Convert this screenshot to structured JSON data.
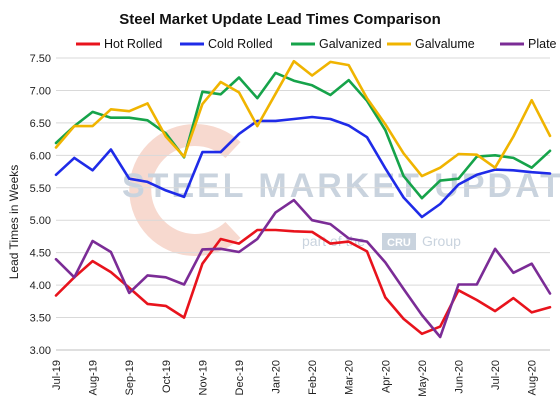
{
  "chart_data": {
    "type": "line",
    "title": "Steel Market Update Lead Times Comparison",
    "ylabel": "Lead Times in Weeks",
    "xlabel": "",
    "ylim": [
      3.0,
      7.5
    ],
    "yticks": [
      "3.00",
      "3.50",
      "4.00",
      "4.50",
      "5.00",
      "5.50",
      "6.00",
      "6.50",
      "7.00",
      "7.50"
    ],
    "x_tick_labels": [
      "Jul-19",
      "Aug-19",
      "Sep-19",
      "Oct-19",
      "Nov-19",
      "Dec-19",
      "Jan-20",
      "Feb-20",
      "Mar-20",
      "Apr-20",
      "May-20",
      "Jun-20",
      "Jul-20",
      "Aug-20"
    ],
    "grid": "horizontal",
    "legend": "top",
    "series": [
      {
        "name": "Hot Rolled",
        "color": "#e8131c",
        "values": [
          3.84,
          4.12,
          4.37,
          4.2,
          3.96,
          3.71,
          3.68,
          3.5,
          4.33,
          4.71,
          4.64,
          4.85,
          4.85,
          4.83,
          4.82,
          4.64,
          4.67,
          4.52,
          3.81,
          3.48,
          3.25,
          3.36,
          3.92,
          3.77,
          3.6,
          3.8,
          3.58,
          3.66
        ]
      },
      {
        "name": "Cold Rolled",
        "color": "#1f2be8",
        "values": [
          5.7,
          5.96,
          5.77,
          6.09,
          5.64,
          5.59,
          5.46,
          5.36,
          6.05,
          6.05,
          6.33,
          6.53,
          6.53,
          6.56,
          6.59,
          6.56,
          6.46,
          6.28,
          5.8,
          5.35,
          5.05,
          5.25,
          5.55,
          5.7,
          5.78,
          5.77,
          5.74,
          5.72
        ]
      },
      {
        "name": "Galvanized",
        "color": "#16a34a",
        "values": [
          6.19,
          6.45,
          6.67,
          6.58,
          6.58,
          6.54,
          6.34,
          5.97,
          6.98,
          6.94,
          7.2,
          6.88,
          7.27,
          7.15,
          7.08,
          6.93,
          7.16,
          6.84,
          6.39,
          5.68,
          5.34,
          5.61,
          5.64,
          5.98,
          6.0,
          5.96,
          5.81,
          6.07
        ]
      },
      {
        "name": "Galvalume",
        "color": "#f0b400",
        "values": [
          6.12,
          6.45,
          6.45,
          6.71,
          6.68,
          6.8,
          6.29,
          5.98,
          6.79,
          7.13,
          6.97,
          6.45,
          6.95,
          7.45,
          7.23,
          7.44,
          7.39,
          6.88,
          6.48,
          6.03,
          5.68,
          5.81,
          6.02,
          6.01,
          5.81,
          6.29,
          6.85,
          6.3
        ]
      },
      {
        "name": "Plate",
        "color": "#7b2c96",
        "values": [
          4.4,
          4.12,
          4.68,
          4.51,
          3.88,
          4.15,
          4.12,
          4.01,
          4.55,
          4.56,
          4.51,
          4.71,
          5.12,
          5.31,
          5.0,
          4.94,
          4.72,
          4.67,
          4.35,
          3.94,
          3.54,
          3.2,
          4.01,
          4.01,
          4.56,
          4.19,
          4.33,
          3.87
        ]
      }
    ]
  },
  "watermark": {
    "main": "STEEL MARKET UPDATE",
    "sub_prefix": "part of the",
    "badge": "CRU",
    "sub_suffix": "Group"
  }
}
